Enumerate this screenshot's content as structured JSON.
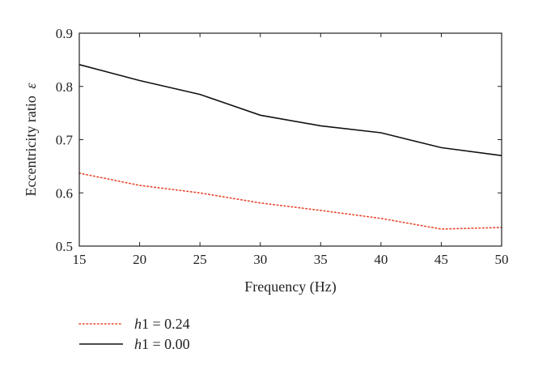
{
  "chart_data": {
    "type": "line",
    "title": "",
    "xlabel": "Frequency (Hz)",
    "ylabel_main": "Eccentricity ratio",
    "ylabel_symbol": "ε",
    "x": [
      15,
      20,
      25,
      30,
      35,
      40,
      45,
      50
    ],
    "xlim": [
      15,
      50
    ],
    "ylim": [
      0.5,
      0.9
    ],
    "xticks": [
      15,
      20,
      25,
      30,
      35,
      40,
      45,
      50
    ],
    "yticks": [
      0.5,
      0.6,
      0.7,
      0.8,
      0.9
    ],
    "ytick_labels": [
      "0.5",
      "0.6",
      "0.7",
      "0.8",
      "0.9"
    ],
    "grid": false,
    "legend_position": "below-left",
    "series": [
      {
        "name_var": "h",
        "name_sub": "1",
        "name_rest": " = 0.24",
        "style": "dotted",
        "color": "#e8452c",
        "values": [
          0.637,
          0.614,
          0.6,
          0.581,
          0.567,
          0.552,
          0.532,
          0.535
        ]
      },
      {
        "name_var": "h",
        "name_sub": "1",
        "name_rest": " = 0.00",
        "style": "solid",
        "color": "#111111",
        "values": [
          0.841,
          0.811,
          0.785,
          0.746,
          0.726,
          0.713,
          0.685,
          0.67
        ]
      }
    ]
  }
}
